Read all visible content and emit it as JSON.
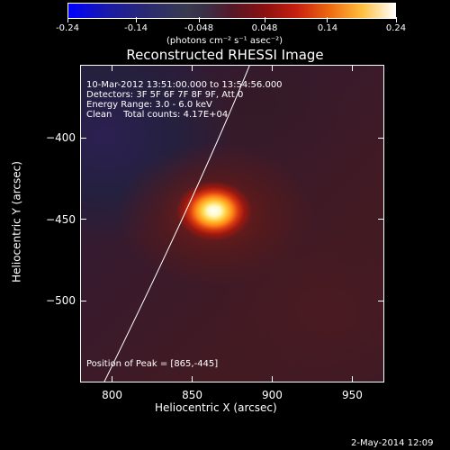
{
  "colorbar": {
    "tick_labels": [
      "-0.24",
      "-0.14",
      "-0.048",
      "0.048",
      "0.14",
      "0.24"
    ],
    "unit_label": "(photons cm⁻² s⁻¹ asec⁻²)"
  },
  "chart_data": {
    "type": "heatmap",
    "title": "Reconstructed RHESSI Image",
    "xlabel": "Heliocentric X (arcsec)",
    "ylabel": "Heliocentric Y (arcsec)",
    "xlim": [
      780,
      970
    ],
    "ylim": [
      -550,
      -355
    ],
    "x_ticks": [
      800,
      850,
      900,
      950
    ],
    "y_ticks": [
      -400,
      -450,
      -500
    ],
    "x_tick_labels": [
      "800",
      "850",
      "900",
      "950"
    ],
    "y_tick_labels": [
      "−400",
      "−450",
      "−500"
    ],
    "color_range": [
      -0.24,
      0.24
    ],
    "peak": {
      "x": 865,
      "y": -445
    },
    "annotations": {
      "time": "10-Mar-2012 13:51:00.000 to 13:54:56.000",
      "detectors": "Detectors: 3F 5F 6F 7F 8F 9F, Att 0",
      "energy": "Energy Range: 3.0 - 6.0 keV",
      "clean": "Clean    Total counts: 4.17E+04",
      "peak_text": "Position of Peak = [865,-445]"
    }
  },
  "footer": {
    "date": "2-May-2014 12:09"
  }
}
